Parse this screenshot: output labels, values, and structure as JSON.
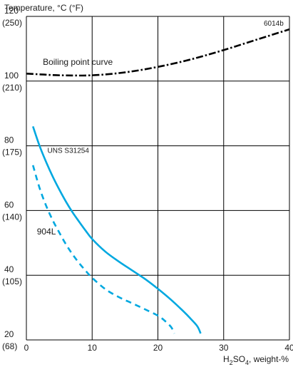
{
  "chart_data": {
    "type": "line",
    "ylabel": "Temperature, °C (°F)",
    "xlabel_main": "H",
    "xlabel_sub1": "2",
    "xlabel_mid": "SO",
    "xlabel_sub2": "4",
    "xlabel_tail": ", weight-%",
    "figure_code": "6014b",
    "xlim": [
      0,
      40
    ],
    "ylim": [
      20,
      120
    ],
    "grid": true,
    "x_ticks": [
      {
        "value": 0,
        "label": "0"
      },
      {
        "value": 10,
        "label": "10"
      },
      {
        "value": 20,
        "label": "20"
      },
      {
        "value": 30,
        "label": "30"
      },
      {
        "value": 40,
        "label": "40"
      }
    ],
    "y_ticks": [
      {
        "value": 120,
        "label": "120",
        "label_f": "(250)"
      },
      {
        "value": 100,
        "label": "100",
        "label_f": "(210)"
      },
      {
        "value": 80,
        "label": "80",
        "label_f": "(175)"
      },
      {
        "value": 60,
        "label": "60",
        "label_f": "(140)"
      },
      {
        "value": 40,
        "label": "40",
        "label_f": "(105)"
      },
      {
        "value": 20,
        "label": "20",
        "label_f": "(68)"
      }
    ],
    "series": [
      {
        "name": "Boiling point curve",
        "style": "dashdot",
        "color": "#000000",
        "x": [
          0,
          2,
          5,
          10,
          15,
          20,
          25,
          30,
          35,
          40
        ],
        "y": [
          102.3,
          102.1,
          101.8,
          101.8,
          102.7,
          104.4,
          106.7,
          109.6,
          112.8,
          116
        ]
      },
      {
        "name": "UNS S31254",
        "style": "solid",
        "color": "#00a8e0",
        "x": [
          1,
          2,
          3,
          4,
          5,
          6,
          7,
          8,
          9,
          10,
          12,
          14,
          16,
          18,
          20,
          22,
          24,
          25,
          26,
          26.5
        ],
        "y": [
          86,
          80,
          75,
          70.5,
          66.5,
          62.8,
          59.5,
          56.6,
          53.8,
          51.2,
          47.3,
          44.3,
          41.6,
          38.9,
          35.8,
          32.4,
          28.6,
          26.5,
          24.2,
          22
        ]
      },
      {
        "name": "904L",
        "style": "dashed",
        "color": "#00a8e0",
        "x": [
          1,
          2,
          3,
          4,
          5,
          6,
          7,
          8,
          9,
          10,
          12,
          14,
          16,
          18,
          20,
          21,
          22,
          22.5
        ],
        "y": [
          74,
          67,
          61.5,
          57,
          53.2,
          49.6,
          46.5,
          43.8,
          41.4,
          39.2,
          35.7,
          33.3,
          31.4,
          29.5,
          27.5,
          26,
          24,
          22
        ]
      }
    ],
    "annotations": [
      {
        "text": "Boiling point curve",
        "x": 2.5,
        "y": 105
      },
      {
        "text": "UNS S31254",
        "x": 3.2,
        "y": 77.8
      },
      {
        "text": "904L",
        "x": 1.6,
        "y": 52.6
      }
    ]
  }
}
